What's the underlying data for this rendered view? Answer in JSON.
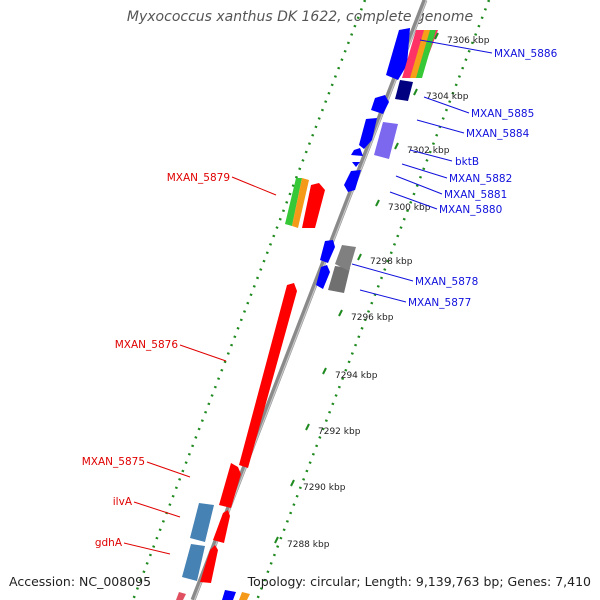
{
  "title": "Myxococcus xanthus DK 1622, complete genome",
  "footer": {
    "accession": "Accession: NC_008095",
    "stats": "Topology: circular; Length: 9,139,763 bp; Genes: 7,410"
  },
  "colors": {
    "forward_gene": "#ff0000",
    "reverse_gene": "#0000ff",
    "backbone": "#8a8a8a",
    "tick_dots": "#1f8a1f",
    "label_forward": "#e00000",
    "label_reverse": "#1010dd"
  },
  "kbp_ticks": [
    "7306 kbp",
    "7304 kbp",
    "7302 kbp",
    "7300 kbp",
    "7298 kbp",
    "7296 kbp",
    "7294 kbp",
    "7292 kbp",
    "7290 kbp",
    "7288 kbp"
  ],
  "gene_labels_forward": [
    "MXAN_5879",
    "MXAN_5876",
    "MXAN_5875",
    "ilvA",
    "gdhA"
  ],
  "gene_labels_reverse": [
    "MXAN_5886",
    "MXAN_5885",
    "MXAN_5884",
    "bktB",
    "MXAN_5882",
    "MXAN_5881",
    "MXAN_5880",
    "MXAN_5878",
    "MXAN_5877"
  ]
}
